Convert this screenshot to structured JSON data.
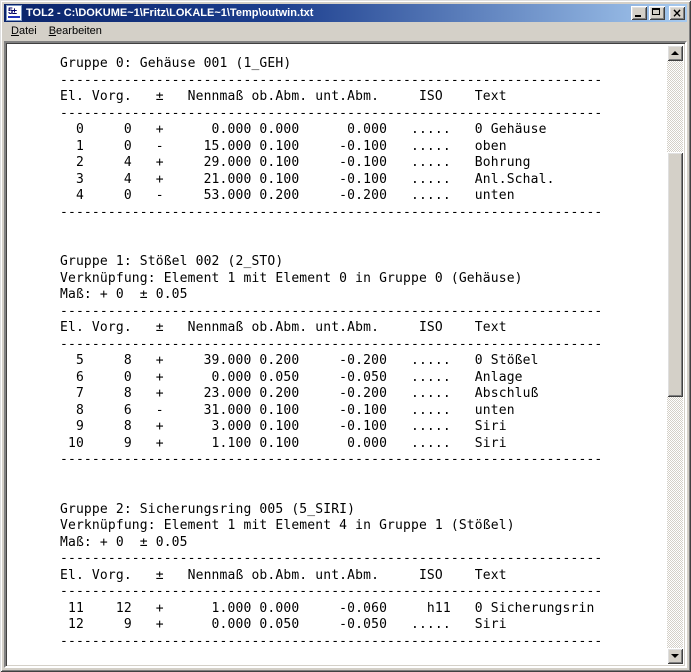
{
  "window": {
    "title": "TOL2 - C:\\DOKUME~1\\Fritz\\LOKALE~1\\Temp\\outwin.txt",
    "app_icon": "5±"
  },
  "menu": {
    "items": [
      {
        "label": "Datei",
        "accel_index": 0
      },
      {
        "label": "Bearbeiten",
        "accel_index": 0
      }
    ]
  },
  "document": {
    "separator": "--------------------------------------------------------------------",
    "columns": [
      "El.",
      "Vorg.",
      "±",
      "Nennmaß",
      "ob.Abm.",
      "unt.Abm.",
      "ISO",
      "Text"
    ],
    "groups": [
      {
        "title": "Gruppe 0: Gehäuse 001 (1_GEH)",
        "info": [],
        "rows": [
          {
            "el": "0",
            "vorg": "0",
            "sign": "+",
            "nenn": "0.000",
            "ob": "0.000",
            "unt": "0.000",
            "iso": ".....",
            "text": "0 Gehäuse"
          },
          {
            "el": "1",
            "vorg": "0",
            "sign": "-",
            "nenn": "15.000",
            "ob": "0.100",
            "unt": "-0.100",
            "iso": ".....",
            "text": "oben"
          },
          {
            "el": "2",
            "vorg": "4",
            "sign": "+",
            "nenn": "29.000",
            "ob": "0.100",
            "unt": "-0.100",
            "iso": ".....",
            "text": "Bohrung"
          },
          {
            "el": "3",
            "vorg": "4",
            "sign": "+",
            "nenn": "21.000",
            "ob": "0.100",
            "unt": "-0.100",
            "iso": ".....",
            "text": "Anl.Schal."
          },
          {
            "el": "4",
            "vorg": "0",
            "sign": "-",
            "nenn": "53.000",
            "ob": "0.200",
            "unt": "-0.200",
            "iso": ".....",
            "text": "unten"
          }
        ]
      },
      {
        "title": "Gruppe 1: Stößel 002 (2_STO)",
        "info": [
          "Verknüpfung: Element 1 mit Element 0 in Gruppe 0 (Gehäuse)",
          "Maß: + 0  ± 0.05"
        ],
        "rows": [
          {
            "el": "5",
            "vorg": "8",
            "sign": "+",
            "nenn": "39.000",
            "ob": "0.200",
            "unt": "-0.200",
            "iso": ".....",
            "text": "0 Stößel"
          },
          {
            "el": "6",
            "vorg": "0",
            "sign": "+",
            "nenn": "0.000",
            "ob": "0.050",
            "unt": "-0.050",
            "iso": ".....",
            "text": "Anlage"
          },
          {
            "el": "7",
            "vorg": "8",
            "sign": "+",
            "nenn": "23.000",
            "ob": "0.200",
            "unt": "-0.200",
            "iso": ".....",
            "text": "Abschluß"
          },
          {
            "el": "8",
            "vorg": "6",
            "sign": "-",
            "nenn": "31.000",
            "ob": "0.100",
            "unt": "-0.100",
            "iso": ".....",
            "text": "unten"
          },
          {
            "el": "9",
            "vorg": "8",
            "sign": "+",
            "nenn": "3.000",
            "ob": "0.100",
            "unt": "-0.100",
            "iso": ".....",
            "text": "Siri"
          },
          {
            "el": "10",
            "vorg": "9",
            "sign": "+",
            "nenn": "1.100",
            "ob": "0.100",
            "unt": "0.000",
            "iso": ".....",
            "text": "Siri"
          }
        ]
      },
      {
        "title": "Gruppe 2: Sicherungsring 005 (5_SIRI)",
        "info": [
          "Verknüpfung: Element 1 mit Element 4 in Gruppe 1 (Stößel)",
          "Maß: + 0  ± 0.05"
        ],
        "rows": [
          {
            "el": "11",
            "vorg": "12",
            "sign": "+",
            "nenn": "1.000",
            "ob": "0.000",
            "unt": "-0.060",
            "iso": "h11",
            "text": "0 Sicherungsrin"
          },
          {
            "el": "12",
            "vorg": "9",
            "sign": "+",
            "nenn": "0.000",
            "ob": "0.050",
            "unt": "-0.050",
            "iso": ".....",
            "text": "Siri"
          }
        ]
      }
    ]
  }
}
